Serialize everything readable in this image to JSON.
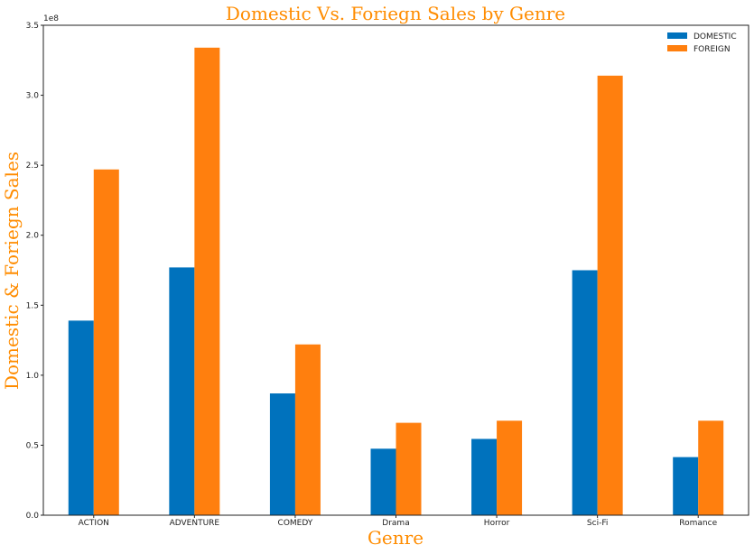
{
  "colors": {
    "domestic": "#0072bd",
    "foreign": "#ff7f0e",
    "title": "#ff8c00",
    "axes": "#222222"
  },
  "chart_data": {
    "type": "bar",
    "title": "Domestic Vs. Foriegn Sales by Genre",
    "xlabel": "Genre",
    "ylabel": "Domestic & Foriegn Sales",
    "y_offset_label": "1e8",
    "categories": [
      "ACTION",
      "ADVENTURE",
      "COMEDY",
      "Drama",
      "Horror",
      "Sci-Fi",
      "Romance"
    ],
    "series": [
      {
        "name": "DOMESTIC",
        "values": [
          139000000,
          177000000,
          87000000,
          47500000,
          54500000,
          175000000,
          41500000
        ]
      },
      {
        "name": "FOREIGN",
        "values": [
          247000000,
          334000000,
          122000000,
          66000000,
          67500000,
          314000000,
          67500000
        ]
      }
    ],
    "ylim": [
      0,
      350000000
    ],
    "yticks": [
      0,
      50000000,
      100000000,
      150000000,
      200000000,
      250000000,
      300000000,
      350000000
    ],
    "ytick_labels": [
      "0.0",
      "0.5",
      "1.0",
      "1.5",
      "2.0",
      "2.5",
      "3.0",
      "3.5"
    ],
    "grid": false,
    "legend_position": "top-right"
  }
}
